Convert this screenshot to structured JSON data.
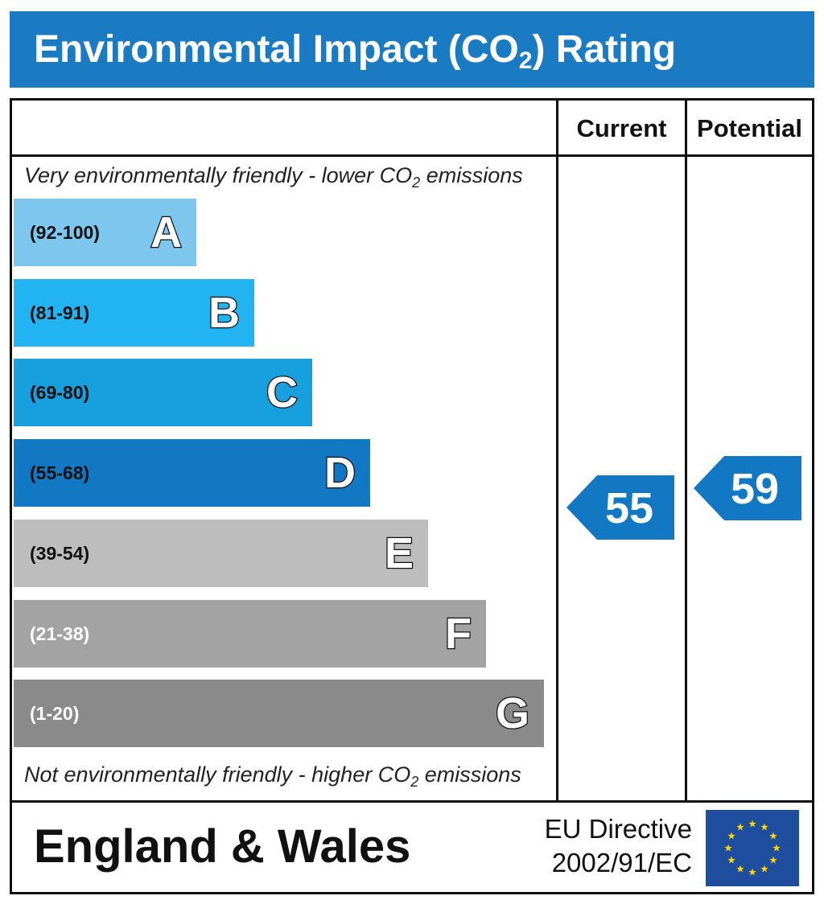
{
  "title": {
    "main": "Environmental Impact (CO",
    "sub": "2",
    "end": ") Rating"
  },
  "columns": {
    "current": "Current",
    "potential": "Potential"
  },
  "top_note": {
    "pre": "Very environmentally friendly - lower CO",
    "sub": "2",
    "post": " emissions"
  },
  "bottom_note": {
    "pre": "Not environmentally friendly - higher CO",
    "sub": "2",
    "post": " emissions"
  },
  "footer": {
    "region": "England & Wales",
    "directive_line1": "EU Directive",
    "directive_line2": "2002/91/EC"
  },
  "chart_data": {
    "type": "bar",
    "categories": [
      "A",
      "B",
      "C",
      "D",
      "E",
      "F",
      "G"
    ],
    "ranges": [
      "(92-100)",
      "(81-91)",
      "(69-80)",
      "(55-68)",
      "(39-54)",
      "(21-38)",
      "(1-20)"
    ],
    "colors": [
      "#7dc6ee",
      "#21b3f2",
      "#189fdd",
      "#1278c3",
      "#bdbdbd",
      "#a3a3a3",
      "#8a8a8a"
    ],
    "range_text_colors": [
      "#111111",
      "#111111",
      "#111111",
      "#111111",
      "#111111",
      "#ffffff",
      "#ffffff"
    ],
    "current": 55,
    "potential": 59,
    "indicator_color": "#1278c3"
  }
}
